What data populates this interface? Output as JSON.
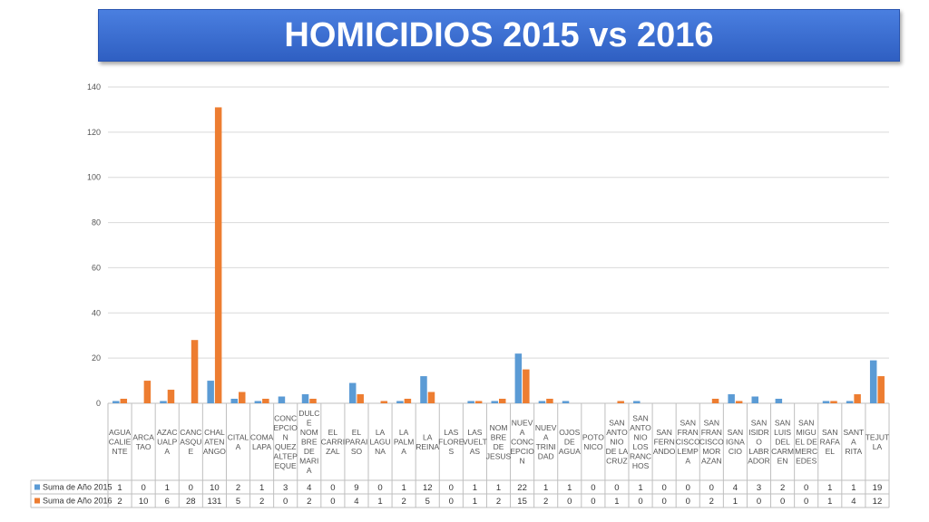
{
  "chart_data": {
    "type": "bar",
    "title": "HOMICIDIOS 2015 vs 2016",
    "ylim": [
      0,
      140
    ],
    "yticks": [
      0,
      20,
      40,
      60,
      80,
      100,
      120,
      140
    ],
    "grid": true,
    "categories": [
      "AGUA CALIENTE",
      "ARCATAO",
      "AZACUALPA",
      "CANCASQUE",
      "CHALATENANGO",
      "CITALA",
      "COMALAPA",
      "CONCEPCION QUEZALTEPEQUE",
      "DULCE NOMBRE DE MARIA",
      "EL CARRIZAL",
      "EL PARAISO",
      "LA LAGUNA",
      "LA PALMA",
      "LA REINA",
      "LAS FLORES",
      "LAS VUELTAS",
      "NOMBRE DE JESUS",
      "NUEVA CONCEPCION",
      "NUEVA TRINIDAD",
      "OJOS DE AGUA",
      "POTONICO",
      "SAN ANTONIO DE LA CRUZ",
      "SAN ANTONIO LOS RANCHOS",
      "SAN FERNANDO",
      "SAN FRANCISCO LEMPA",
      "SAN FRANCISCO MORAZAN",
      "SAN IGNACIO",
      "SAN ISIDRO LABRADOR",
      "SAN LUIS DEL CARMEN",
      "SAN MIGUEL DE MERCEDES",
      "SAN RAFAEL",
      "SANTA RITA",
      "TEJUTLA"
    ],
    "category_lines": [
      [
        "AGUA",
        "CALIE",
        "NTE"
      ],
      [
        "ARCA",
        "TAO"
      ],
      [
        "AZAC",
        "UALP",
        "A"
      ],
      [
        "CANC",
        "ASQU",
        "E"
      ],
      [
        "CHAL",
        "ATEN",
        "ANGO"
      ],
      [
        "CITAL",
        "A"
      ],
      [
        "COMA",
        "LAPA"
      ],
      [
        "CONC",
        "EPCIO",
        "N",
        "QUEZ",
        "ALTEP",
        "EQUE"
      ],
      [
        "DULC",
        "E",
        "NOM",
        "BRE",
        "DE",
        "MARI",
        "A"
      ],
      [
        "EL",
        "CARRI",
        "ZAL"
      ],
      [
        "EL",
        "PARAI",
        "SO"
      ],
      [
        "LA",
        "LAGU",
        "NA"
      ],
      [
        "LA",
        "PALM",
        "A"
      ],
      [
        "LA",
        "REINA"
      ],
      [
        "LAS",
        "FLORE",
        "S"
      ],
      [
        "LAS",
        "VUELT",
        "AS"
      ],
      [
        "NOM",
        "BRE",
        "DE",
        "JESUS"
      ],
      [
        "NUEV",
        "A",
        "CONC",
        "EPCIO",
        "N"
      ],
      [
        "NUEV",
        "A",
        "TRINI",
        "DAD"
      ],
      [
        "OJOS",
        "DE",
        "AGUA"
      ],
      [
        "POTO",
        "NICO"
      ],
      [
        "SAN",
        "ANTO",
        "NIO",
        "DE LA",
        "CRUZ"
      ],
      [
        "SAN",
        "ANTO",
        "NIO",
        "LOS",
        "RANC",
        "HOS"
      ],
      [
        "SAN",
        "FERN",
        "ANDO"
      ],
      [
        "SAN",
        "FRAN",
        "CISCO",
        "LEMP",
        "A"
      ],
      [
        "SAN",
        "FRAN",
        "CISCO",
        "MOR",
        "AZAN"
      ],
      [
        "SAN",
        "IGNA",
        "CIO"
      ],
      [
        "SAN",
        "ISIDR",
        "O",
        "LABR",
        "ADOR"
      ],
      [
        "SAN",
        "LUIS",
        "DEL",
        "CARM",
        "EN"
      ],
      [
        "SAN",
        "MIGU",
        "EL DE",
        "MERC",
        "EDES"
      ],
      [
        "SAN",
        "RAFA",
        "EL"
      ],
      [
        "SANT",
        "A",
        "RITA"
      ],
      [
        "TEJUT",
        "LA"
      ]
    ],
    "series": [
      {
        "name": "Suma de Año 2015",
        "color": "#5b9bd5",
        "values": [
          1,
          0,
          1,
          0,
          10,
          2,
          1,
          3,
          4,
          0,
          9,
          0,
          1,
          12,
          0,
          1,
          1,
          22,
          1,
          1,
          0,
          0,
          1,
          0,
          0,
          0,
          4,
          3,
          2,
          0,
          1,
          1,
          19
        ]
      },
      {
        "name": "Suma de Año 2016",
        "color": "#ed7d31",
        "values": [
          2,
          10,
          6,
          28,
          131,
          5,
          2,
          0,
          2,
          0,
          4,
          1,
          2,
          5,
          0,
          1,
          2,
          15,
          2,
          0,
          0,
          1,
          0,
          0,
          0,
          2,
          1,
          0,
          0,
          0,
          1,
          4,
          12
        ]
      }
    ]
  }
}
